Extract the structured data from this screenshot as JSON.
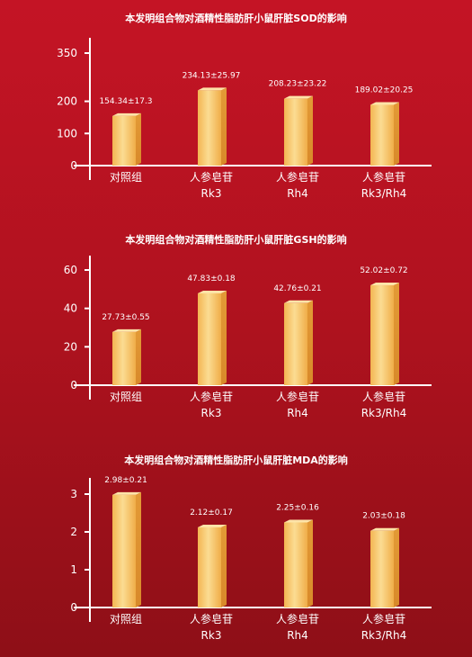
{
  "chart_data": [
    {
      "type": "bar",
      "title": "本发明组合物对酒精性脂肪肝小鼠肝脏SOD的影响",
      "categories": [
        [
          "对照组"
        ],
        [
          "人参皂苷",
          "Rk3"
        ],
        [
          "人参皂苷",
          "Rh4"
        ],
        [
          "人参皂苷",
          "Rk3/Rh4"
        ]
      ],
      "values": [
        154.34,
        234.13,
        208.23,
        189.02
      ],
      "data_labels": [
        "154.34±17.3",
        "234.13±25.97",
        "208.23±23.22",
        "189.02±20.25"
      ],
      "yticks": [
        0,
        100,
        200,
        350
      ],
      "ylim": [
        0,
        350
      ],
      "xlabel": "",
      "ylabel": "",
      "bar_color": "#f7c978",
      "grid": false
    },
    {
      "type": "bar",
      "title": "本发明组合物对酒精性脂肪肝小鼠肝脏GSH的影响",
      "categories": [
        [
          "对照组"
        ],
        [
          "人参皂苷",
          "Rk3"
        ],
        [
          "人参皂苷",
          "Rh4"
        ],
        [
          "人参皂苷",
          "Rk3/Rh4"
        ]
      ],
      "values": [
        27.73,
        47.83,
        42.76,
        52.02
      ],
      "data_labels": [
        "27.73±0.55",
        "47.83±0.18",
        "42.76±0.21",
        "52.02±0.72"
      ],
      "yticks": [
        0,
        20,
        40,
        60
      ],
      "ylim": [
        0,
        60
      ],
      "xlabel": "",
      "ylabel": "",
      "bar_color": "#f7c978",
      "grid": false
    },
    {
      "type": "bar",
      "title": "本发明组合物对酒精性脂肪肝小鼠肝脏MDA的影响",
      "categories": [
        [
          "对照组"
        ],
        [
          "人参皂苷",
          "Rk3"
        ],
        [
          "人参皂苷",
          "Rh4"
        ],
        [
          "人参皂苷",
          "Rk3/Rh4"
        ]
      ],
      "values": [
        2.98,
        2.12,
        2.25,
        2.03
      ],
      "data_labels": [
        "2.98±0.21",
        "2.12±0.17",
        "2.25±0.16",
        "2.03±0.18"
      ],
      "yticks": [
        0,
        1,
        2,
        3
      ],
      "ylim": [
        0,
        3
      ],
      "xlabel": "",
      "ylabel": "",
      "bar_color": "#f7c978",
      "grid": false
    }
  ]
}
